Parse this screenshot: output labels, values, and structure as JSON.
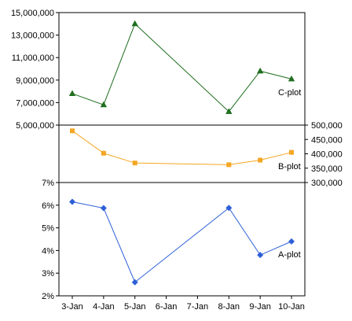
{
  "chart_data": {
    "type": "line",
    "x": [
      "3-Jan",
      "4-Jan",
      "5-Jan",
      "6-Jan",
      "7-Jan",
      "8-Jan",
      "9-Jan",
      "10-Jan"
    ],
    "panels": [
      {
        "name": "C-plot",
        "label": "C-plot",
        "axis": "left",
        "ylim": [
          5000000,
          15000000
        ],
        "ticks": [
          "15,000,000",
          "13,000,000",
          "11,000,000",
          "9,000,000",
          "7,000,000",
          "5,000,000"
        ],
        "tick_values": [
          15000000,
          13000000,
          11000000,
          9000000,
          7000000,
          5000000
        ],
        "color": "#1f6e1f",
        "marker": "triangle",
        "points": [
          {
            "x": "3-Jan",
            "y": 7800000
          },
          {
            "x": "4-Jan",
            "y": 6800000
          },
          {
            "x": "5-Jan",
            "y": 14000000
          },
          {
            "x": "8-Jan",
            "y": 6200000
          },
          {
            "x": "9-Jan",
            "y": 9800000
          },
          {
            "x": "10-Jan",
            "y": 9100000
          }
        ]
      },
      {
        "name": "B-plot",
        "label": "B-plot",
        "axis": "right",
        "ylim": [
          300000,
          500000
        ],
        "ticks": [
          "500,000",
          "450,000",
          "400,000",
          "350,000",
          "300,000"
        ],
        "tick_values": [
          500000,
          450000,
          400000,
          350000,
          300000
        ],
        "color": "#f5a623",
        "marker": "square",
        "points": [
          {
            "x": "3-Jan",
            "y": 480000
          },
          {
            "x": "4-Jan",
            "y": 402000
          },
          {
            "x": "5-Jan",
            "y": 368000
          },
          {
            "x": "8-Jan",
            "y": 362000
          },
          {
            "x": "9-Jan",
            "y": 378000
          },
          {
            "x": "10-Jan",
            "y": 405000
          }
        ]
      },
      {
        "name": "A-plot",
        "label": "A-plot",
        "axis": "left",
        "ylim": [
          0.02,
          0.07
        ],
        "ticks": [
          "7%",
          "6%",
          "5%",
          "4%",
          "3%",
          "2%"
        ],
        "tick_values": [
          0.07,
          0.06,
          0.05,
          0.04,
          0.03,
          0.02
        ],
        "color": "#2e5fd8",
        "marker": "diamond",
        "points": [
          {
            "x": "3-Jan",
            "y": 0.0615
          },
          {
            "x": "4-Jan",
            "y": 0.0587
          },
          {
            "x": "5-Jan",
            "y": 0.026
          },
          {
            "x": "8-Jan",
            "y": 0.0588
          },
          {
            "x": "9-Jan",
            "y": 0.038
          },
          {
            "x": "10-Jan",
            "y": 0.044
          }
        ]
      }
    ],
    "grid": false,
    "legend": "none"
  }
}
